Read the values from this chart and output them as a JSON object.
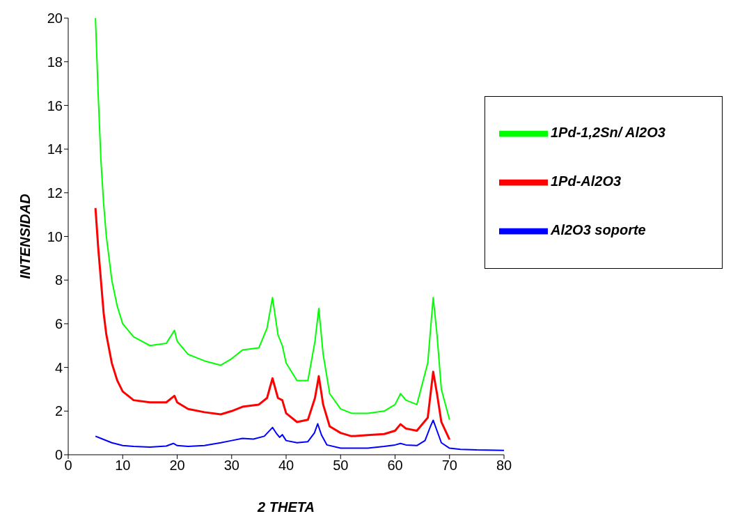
{
  "chart_data": {
    "type": "line",
    "xlabel": "2 THETA",
    "ylabel": "INTENSIDAD",
    "xlim": [
      0,
      80
    ],
    "xticks": [
      0,
      10,
      20,
      30,
      40,
      50,
      60,
      70,
      80
    ],
    "ylim": [
      0,
      20
    ],
    "yticks": [
      0,
      2,
      4,
      6,
      8,
      10,
      12,
      14,
      16,
      18,
      20
    ],
    "grid": false,
    "legend": "top right",
    "marker": "none",
    "line_style": "solid",
    "series": [
      {
        "name": "Al2O3 soporte",
        "color": "#0000ff",
        "x": [
          5,
          6,
          8,
          10,
          12,
          15,
          18,
          19.3,
          20,
          22,
          25,
          28,
          30,
          32,
          34,
          36,
          37.5,
          38.3,
          38.8,
          39.3,
          40,
          42,
          44,
          45.2,
          45.8,
          46.5,
          47.5,
          50,
          55,
          58,
          60,
          61,
          62,
          64,
          65.5,
          66.5,
          67,
          67.7,
          68.5,
          70,
          72,
          75,
          80
        ],
        "values": [
          0.85,
          0.75,
          0.55,
          0.42,
          0.38,
          0.35,
          0.4,
          0.52,
          0.42,
          0.38,
          0.42,
          0.55,
          0.65,
          0.75,
          0.72,
          0.85,
          1.25,
          0.95,
          0.8,
          0.92,
          0.65,
          0.55,
          0.6,
          1.0,
          1.42,
          0.9,
          0.45,
          0.3,
          0.3,
          0.38,
          0.45,
          0.52,
          0.45,
          0.42,
          0.65,
          1.3,
          1.58,
          1.1,
          0.55,
          0.3,
          0.25,
          0.22,
          0.2
        ]
      },
      {
        "name": "1Pd-Al2O3",
        "color": "#ff0000",
        "x": [
          5,
          5.5,
          6,
          6.5,
          7,
          8,
          9,
          10,
          12,
          15,
          18,
          19.5,
          20,
          22,
          25,
          28,
          30,
          32,
          35,
          36.5,
          37.5,
          38.5,
          39.3,
          40,
          42,
          44,
          45.3,
          46,
          46.8,
          48,
          50,
          52,
          55,
          58,
          60,
          61,
          62,
          64,
          66,
          67,
          67.7,
          68.5,
          70
        ],
        "values": [
          11.3,
          9.5,
          8,
          6.5,
          5.5,
          4.2,
          3.4,
          2.9,
          2.5,
          2.4,
          2.4,
          2.7,
          2.4,
          2.1,
          1.95,
          1.85,
          2.0,
          2.2,
          2.3,
          2.6,
          3.5,
          2.6,
          2.5,
          1.9,
          1.5,
          1.6,
          2.6,
          3.6,
          2.3,
          1.3,
          1.0,
          0.85,
          0.9,
          0.95,
          1.1,
          1.4,
          1.2,
          1.1,
          1.7,
          3.8,
          2.8,
          1.5,
          0.7
        ]
      },
      {
        "name": "1Pd-1,2Sn/ Al2O3",
        "color": "#00ff00",
        "x": [
          5,
          5.5,
          6,
          6.5,
          7,
          8,
          9,
          10,
          12,
          15,
          18,
          19.5,
          20,
          22,
          25,
          28,
          30,
          32,
          35,
          36.5,
          37.5,
          38.5,
          39.3,
          40,
          42,
          44,
          45.3,
          46,
          46.8,
          48,
          50,
          52,
          55,
          58,
          60,
          61,
          62,
          64,
          66,
          67,
          67.7,
          68.5,
          70
        ],
        "values": [
          20,
          16.5,
          13.5,
          11.5,
          10,
          8,
          6.8,
          6,
          5.4,
          5.0,
          5.1,
          5.7,
          5.2,
          4.6,
          4.3,
          4.1,
          4.4,
          4.8,
          4.9,
          5.8,
          7.2,
          5.5,
          5.0,
          4.2,
          3.4,
          3.4,
          5.2,
          6.7,
          4.6,
          2.8,
          2.1,
          1.9,
          1.9,
          2.0,
          2.3,
          2.8,
          2.5,
          2.3,
          4.2,
          7.2,
          5.5,
          3.0,
          1.6
        ]
      }
    ]
  }
}
